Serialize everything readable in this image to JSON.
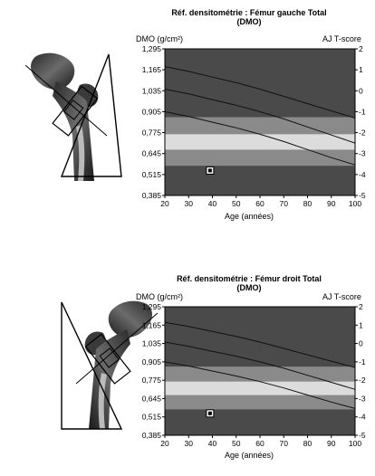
{
  "panels": [
    {
      "title": "Réf. densitométrie : Fémur gauche Total",
      "subtitle": "(DMO)",
      "ylabel": "DMO (g/cm²)",
      "y2label": "AJ T-score",
      "xlabel": "Age (années)",
      "image": "hip-scan-left-femur"
    },
    {
      "title": "Réf. densitométrie : Fémur droit Total",
      "subtitle": "(DMO)",
      "ylabel": "DMO (g/cm²)",
      "y2label": "AJ T-score",
      "xlabel": "Age (années)",
      "image": "hip-scan-right-femur"
    }
  ],
  "chart_data": [
    {
      "type": "scatter",
      "title": "Réf. densitométrie : Fémur gauche Total",
      "subtitle": "(DMO)",
      "xlabel": "Age (années)",
      "ylabel": "DMO (g/cm²)",
      "y2label": "AJ T-score",
      "xlim": [
        20,
        100
      ],
      "ylim": [
        0.385,
        1.295
      ],
      "x_ticks": [
        "20",
        "30",
        "40",
        "50",
        "60",
        "70",
        "80",
        "90",
        "100"
      ],
      "y_ticks": [
        "1,295",
        "1,165",
        "1,035",
        "0,905",
        "0,775",
        "0,645",
        "0,515",
        "0,385"
      ],
      "y2_ticks": [
        "2",
        "1",
        "0",
        "-1",
        "-2",
        "-3",
        "-4",
        "-5"
      ],
      "grid": false,
      "bands": [
        {
          "from": 0.385,
          "to": 0.57,
          "color": "#4a4a4a"
        },
        {
          "from": 0.57,
          "to": 0.67,
          "color": "#8a8a8a"
        },
        {
          "from": 0.67,
          "to": 0.765,
          "color": "#dcdcdc"
        },
        {
          "from": 0.765,
          "to": 0.87,
          "color": "#8a8a8a"
        },
        {
          "from": 0.87,
          "to": 1.295,
          "color": "#4a4a4a"
        }
      ],
      "reference_curves": {
        "x": [
          20,
          30,
          40,
          50,
          60,
          70,
          80,
          90,
          100
        ],
        "upper": [
          1.185,
          1.155,
          1.12,
          1.085,
          1.045,
          1.0,
          0.955,
          0.91,
          0.865
        ],
        "middle": [
          1.045,
          1.015,
          0.98,
          0.945,
          0.905,
          0.86,
          0.81,
          0.76,
          0.71
        ],
        "lower": [
          0.905,
          0.875,
          0.84,
          0.805,
          0.765,
          0.72,
          0.67,
          0.62,
          0.575
        ]
      },
      "points": [
        {
          "x": 39,
          "y": 0.54
        }
      ]
    },
    {
      "type": "scatter",
      "title": "Réf. densitométrie : Fémur droit Total",
      "subtitle": "(DMO)",
      "xlabel": "Age (années)",
      "ylabel": "DMO (g/cm²)",
      "y2label": "AJ T-score",
      "xlim": [
        20,
        100
      ],
      "ylim": [
        0.385,
        1.295
      ],
      "x_ticks": [
        "20",
        "30",
        "40",
        "50",
        "60",
        "70",
        "80",
        "90",
        "100"
      ],
      "y_ticks": [
        "1,295",
        "1,165",
        "1,035",
        "0,905",
        "0,775",
        "0,645",
        "0,515",
        "0,385"
      ],
      "y2_ticks": [
        "2",
        "1",
        "0",
        "-1",
        "-2",
        "-3",
        "-4",
        "-5"
      ],
      "grid": false,
      "bands": [
        {
          "from": 0.385,
          "to": 0.57,
          "color": "#4a4a4a"
        },
        {
          "from": 0.57,
          "to": 0.67,
          "color": "#8a8a8a"
        },
        {
          "from": 0.67,
          "to": 0.765,
          "color": "#dcdcdc"
        },
        {
          "from": 0.765,
          "to": 0.87,
          "color": "#8a8a8a"
        },
        {
          "from": 0.87,
          "to": 1.295,
          "color": "#4a4a4a"
        }
      ],
      "reference_curves": {
        "x": [
          20,
          30,
          40,
          50,
          60,
          70,
          80,
          90,
          100
        ],
        "upper": [
          1.185,
          1.155,
          1.12,
          1.085,
          1.045,
          1.0,
          0.955,
          0.91,
          0.865
        ],
        "middle": [
          1.045,
          1.015,
          0.98,
          0.945,
          0.905,
          0.86,
          0.81,
          0.76,
          0.71
        ],
        "lower": [
          0.905,
          0.875,
          0.84,
          0.805,
          0.765,
          0.72,
          0.67,
          0.62,
          0.575
        ]
      },
      "points": [
        {
          "x": 39,
          "y": 0.54
        }
      ]
    }
  ]
}
